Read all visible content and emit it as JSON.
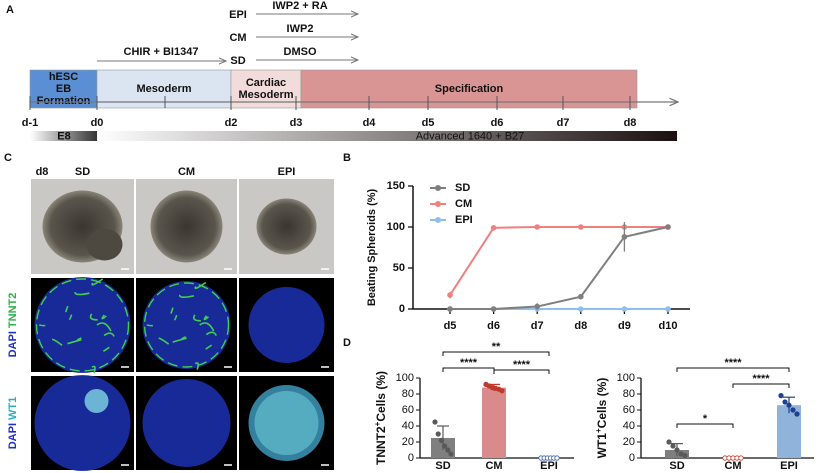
{
  "timeline": {
    "label": "A",
    "stages": [
      {
        "lines": [
          "hESC",
          "EB",
          "Formation"
        ]
      },
      {
        "lines": [
          "Mesoderm"
        ]
      },
      {
        "lines": [
          "Cardiac",
          "Mesoderm"
        ]
      },
      {
        "lines": [
          "Specification"
        ]
      }
    ],
    "days": [
      "d-1",
      "d0",
      "d2",
      "d3",
      "d4",
      "d5",
      "d6",
      "d7",
      "d8"
    ],
    "induction": "CHIR + BI1347",
    "conditions": [
      {
        "name": "EPI",
        "treatment": "IWP2 + RA"
      },
      {
        "name": "CM",
        "treatment": "IWP2"
      },
      {
        "name": "SD",
        "treatment": "DMSO"
      }
    ],
    "media": [
      "E8",
      "Advanced 1640 + B27"
    ]
  },
  "images": {
    "label": "C",
    "day": "d8",
    "columns": [
      "SD",
      "CM",
      "EPI"
    ],
    "rows": [
      {
        "stain": "DAPI",
        "marker": "TNNT2"
      },
      {
        "stain": "DAPI",
        "marker": "WT1"
      }
    ]
  },
  "chart_data": [
    {
      "type": "line",
      "panel": "B",
      "ylabel": "Beating Spheroids (%)",
      "categories": [
        "d5",
        "d6",
        "d7",
        "d8",
        "d9",
        "d10"
      ],
      "ylim": [
        0,
        150
      ],
      "yticks": [
        0,
        50,
        100,
        150
      ],
      "legend": "upper-left",
      "series": [
        {
          "name": "SD",
          "color": "#7f7f7f",
          "values": [
            0,
            0,
            3,
            15,
            88,
            100
          ],
          "errors": [
            0,
            0,
            4,
            2,
            18,
            0
          ]
        },
        {
          "name": "CM",
          "color": "#f07f7f",
          "values": [
            17,
            99,
            100,
            100,
            100,
            100
          ],
          "errors": [
            4,
            1,
            1,
            0,
            0,
            0
          ]
        },
        {
          "name": "EPI",
          "color": "#8fbfef",
          "values": [
            0,
            0,
            0,
            0,
            0,
            0
          ],
          "errors": [
            0,
            0,
            0,
            0,
            0,
            0
          ]
        }
      ]
    },
    {
      "type": "bar",
      "panel": "D",
      "ylabel": [
        "TNNT2",
        "+",
        "Cells (%)"
      ],
      "categories": [
        "SD",
        "CM",
        "EPI"
      ],
      "colors": [
        "#7f7f7f",
        "#d98a8a",
        "#8fb3d9"
      ],
      "point_colors": [
        "#595959",
        "#c0392b",
        "#3a5fa8"
      ],
      "values": [
        25,
        88,
        0
      ],
      "errors": [
        15,
        4,
        0
      ],
      "points": [
        [
          45,
          30,
          22,
          15,
          10,
          5
        ],
        [
          92,
          90,
          88,
          87,
          86,
          84
        ],
        [
          0,
          0,
          0,
          0,
          0,
          0
        ]
      ],
      "ylim": [
        0,
        100
      ],
      "yticks": [
        0,
        20,
        40,
        60,
        80,
        100
      ],
      "comparisons": [
        {
          "from": "SD",
          "to": "CM",
          "label": "****"
        },
        {
          "from": "SD",
          "to": "EPI",
          "label": "**"
        },
        {
          "from": "CM",
          "to": "EPI",
          "label": "****"
        }
      ]
    },
    {
      "type": "bar",
      "ylabel": [
        "WT1",
        "+",
        "Cells (%)"
      ],
      "categories": [
        "SD",
        "CM",
        "EPI"
      ],
      "colors": [
        "#7f7f7f",
        "#d98a8a",
        "#8fb3d9"
      ],
      "point_colors": [
        "#595959",
        "#c0392b",
        "#1f3f8f"
      ],
      "values": [
        10,
        0,
        66
      ],
      "errors": [
        8,
        0,
        10
      ],
      "points": [
        [
          20,
          15,
          10,
          5,
          3
        ],
        [
          0,
          0,
          0,
          0,
          0
        ],
        [
          78,
          70,
          66,
          60,
          55
        ]
      ],
      "ylim": [
        0,
        100
      ],
      "yticks": [
        0,
        20,
        40,
        60,
        80,
        100
      ],
      "comparisons": [
        {
          "from": "SD",
          "to": "CM",
          "label": "*"
        },
        {
          "from": "SD",
          "to": "EPI",
          "label": "****"
        },
        {
          "from": "CM",
          "to": "EPI",
          "label": "****"
        }
      ]
    }
  ]
}
